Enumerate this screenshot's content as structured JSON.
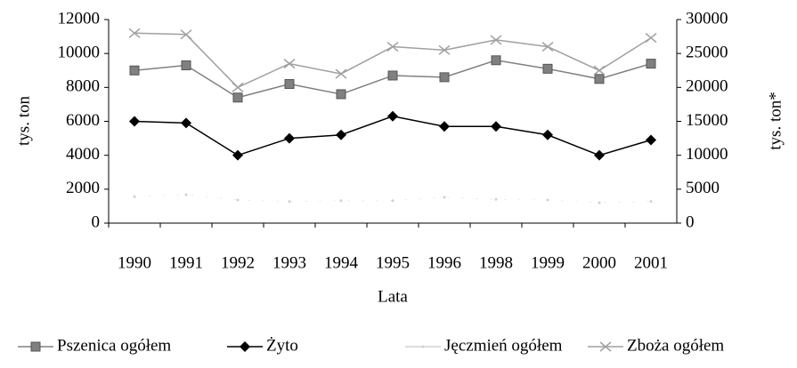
{
  "chart_data": {
    "type": "line",
    "categories": [
      "1990",
      "1991",
      "1992",
      "1993",
      "1994",
      "1995",
      "1996",
      "1998",
      "1999",
      "2000",
      "2001"
    ],
    "series": [
      {
        "name": "Pszenica ogółem",
        "color": "#808080",
        "marker": "square",
        "values": [
          9000,
          9300,
          7400,
          8200,
          7600,
          8700,
          8600,
          9600,
          9100,
          8500,
          9400
        ]
      },
      {
        "name": "Żyto",
        "color": "#000000",
        "marker": "diamond",
        "values": [
          6000,
          5900,
          4000,
          5000,
          5200,
          6300,
          5700,
          5700,
          5200,
          4000,
          4900
        ]
      },
      {
        "name": "Jęczmień ogółem",
        "color": "#d0d0d0",
        "marker": "dot",
        "axis": "y2",
        "values": [
          3900,
          4200,
          3400,
          3200,
          3300,
          3300,
          3800,
          3500,
          3400,
          3000,
          3200
        ]
      },
      {
        "name": "Zboża ogółem",
        "color": "#a0a0a0",
        "marker": "x",
        "axis": "y2",
        "values": [
          28000,
          27800,
          20000,
          23500,
          22000,
          26000,
          25500,
          27000,
          26000,
          22500,
          27300
        ]
      }
    ],
    "ylim": [
      0,
      12000
    ],
    "yticks": [
      0,
      2000,
      4000,
      6000,
      8000,
      10000,
      12000
    ],
    "y2lim": [
      0,
      30000
    ],
    "y2ticks": [
      0,
      5000,
      10000,
      15000,
      20000,
      25000,
      30000
    ],
    "ylabel": "tys. ton",
    "y2label": "tys. ton*",
    "xlabel": "Lata",
    "legend": "bottom"
  }
}
